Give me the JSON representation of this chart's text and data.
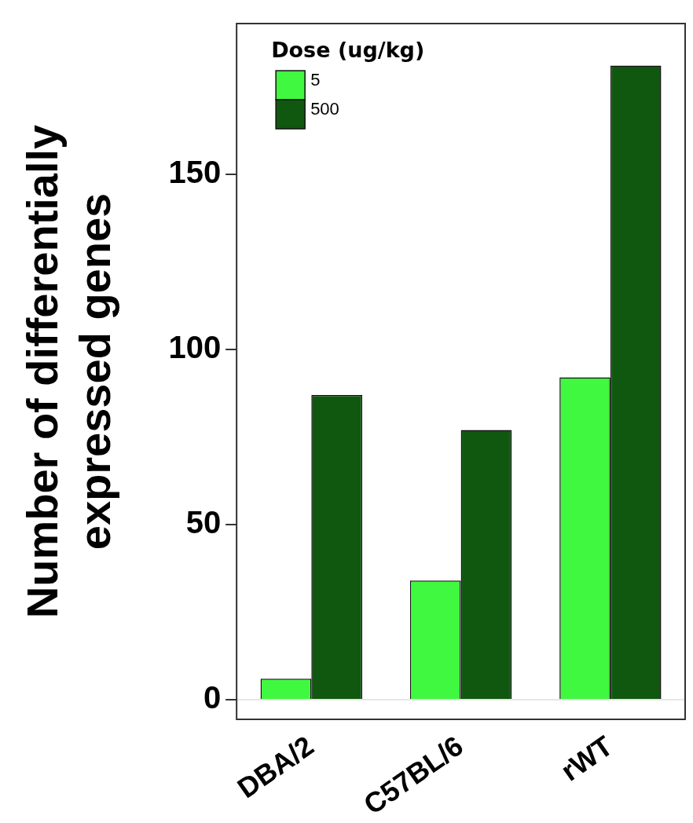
{
  "chart_data": {
    "type": "bar",
    "ylabel": "Number of differentially\nexpressed genes",
    "legend_title": "Dose (ug/kg)",
    "categories": [
      "DBA/2",
      "C57BL/6",
      "rWT"
    ],
    "series": [
      {
        "name": "5",
        "color": "#40f840",
        "values": [
          6,
          34,
          92
        ]
      },
      {
        "name": "500",
        "color": "#105810",
        "values": [
          87,
          77,
          181
        ]
      }
    ],
    "ylim": [
      -5.6,
      193
    ],
    "yticks": [
      0,
      50,
      100,
      150
    ],
    "ref_lines": [
      {
        "axis": "y",
        "value": 0,
        "color": "#e6e6e6"
      }
    ],
    "grid": false,
    "legend": "top left"
  }
}
